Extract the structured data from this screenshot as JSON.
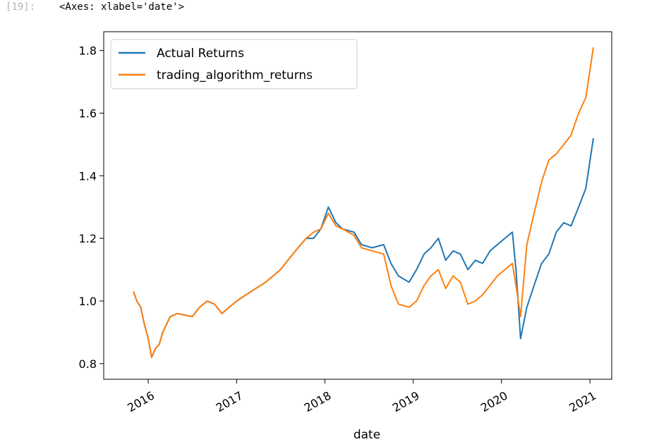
{
  "cell": {
    "prompt": "[19]:",
    "output_text": "<Axes: xlabel='date'>"
  },
  "chart_data": {
    "type": "line",
    "title": "",
    "xlabel": "date",
    "ylabel": "",
    "x_tick_labels": [
      "2016",
      "2017",
      "2018",
      "2019",
      "2020",
      "2021"
    ],
    "y_tick_labels": [
      "0.8",
      "1.0",
      "1.2",
      "1.4",
      "1.6",
      "1.8"
    ],
    "y_ticks": [
      0.8,
      1.0,
      1.2,
      1.4,
      1.6,
      1.8
    ],
    "xlim": [
      "2015-07-01",
      "2021-04-01"
    ],
    "ylim": [
      0.75,
      1.86
    ],
    "legend_position": "upper-left",
    "series": [
      {
        "name": "Actual Returns",
        "color": "#1f77b4",
        "points": [
          [
            "2015-11-01",
            1.03
          ],
          [
            "2015-11-15",
            1.0
          ],
          [
            "2015-12-01",
            0.98
          ],
          [
            "2015-12-15",
            0.93
          ],
          [
            "2016-01-01",
            0.88
          ],
          [
            "2016-01-15",
            0.82
          ],
          [
            "2016-02-01",
            0.85
          ],
          [
            "2016-02-15",
            0.86
          ],
          [
            "2016-03-01",
            0.9
          ],
          [
            "2016-04-01",
            0.95
          ],
          [
            "2016-05-01",
            0.96
          ],
          [
            "2016-06-01",
            0.955
          ],
          [
            "2016-07-01",
            0.95
          ],
          [
            "2016-08-01",
            0.98
          ],
          [
            "2016-09-01",
            1.0
          ],
          [
            "2016-10-01",
            0.99
          ],
          [
            "2016-11-01",
            0.96
          ],
          [
            "2016-12-01",
            0.98
          ],
          [
            "2017-01-01",
            1.0
          ],
          [
            "2017-03-01",
            1.03
          ],
          [
            "2017-05-01",
            1.06
          ],
          [
            "2017-07-01",
            1.1
          ],
          [
            "2017-09-01",
            1.16
          ],
          [
            "2017-10-15",
            1.2
          ],
          [
            "2017-11-15",
            1.2
          ],
          [
            "2017-12-15",
            1.23
          ],
          [
            "2018-01-15",
            1.3
          ],
          [
            "2018-02-15",
            1.25
          ],
          [
            "2018-03-15",
            1.23
          ],
          [
            "2018-05-01",
            1.22
          ],
          [
            "2018-06-01",
            1.18
          ],
          [
            "2018-07-15",
            1.17
          ],
          [
            "2018-09-01",
            1.18
          ],
          [
            "2018-10-01",
            1.12
          ],
          [
            "2018-11-01",
            1.08
          ],
          [
            "2018-12-15",
            1.06
          ],
          [
            "2019-01-15",
            1.1
          ],
          [
            "2019-02-15",
            1.15
          ],
          [
            "2019-03-15",
            1.17
          ],
          [
            "2019-04-15",
            1.2
          ],
          [
            "2019-05-15",
            1.13
          ],
          [
            "2019-06-15",
            1.16
          ],
          [
            "2019-07-15",
            1.15
          ],
          [
            "2019-08-15",
            1.1
          ],
          [
            "2019-09-15",
            1.13
          ],
          [
            "2019-10-15",
            1.12
          ],
          [
            "2019-11-15",
            1.16
          ],
          [
            "2019-12-15",
            1.18
          ],
          [
            "2020-01-15",
            1.2
          ],
          [
            "2020-02-15",
            1.22
          ],
          [
            "2020-03-01",
            1.1
          ],
          [
            "2020-03-20",
            0.88
          ],
          [
            "2020-04-15",
            0.98
          ],
          [
            "2020-05-15",
            1.05
          ],
          [
            "2020-06-15",
            1.12
          ],
          [
            "2020-07-15",
            1.15
          ],
          [
            "2020-08-15",
            1.22
          ],
          [
            "2020-09-15",
            1.25
          ],
          [
            "2020-10-15",
            1.24
          ],
          [
            "2020-11-15",
            1.3
          ],
          [
            "2020-12-15",
            1.36
          ],
          [
            "2021-01-15",
            1.52
          ]
        ]
      },
      {
        "name": "trading_algorithm_returns",
        "color": "#ff7f0e",
        "points": [
          [
            "2015-11-01",
            1.03
          ],
          [
            "2015-11-15",
            1.0
          ],
          [
            "2015-12-01",
            0.98
          ],
          [
            "2015-12-15",
            0.93
          ],
          [
            "2016-01-01",
            0.88
          ],
          [
            "2016-01-15",
            0.82
          ],
          [
            "2016-02-01",
            0.85
          ],
          [
            "2016-02-15",
            0.86
          ],
          [
            "2016-03-01",
            0.9
          ],
          [
            "2016-04-01",
            0.95
          ],
          [
            "2016-05-01",
            0.96
          ],
          [
            "2016-06-01",
            0.955
          ],
          [
            "2016-07-01",
            0.95
          ],
          [
            "2016-08-01",
            0.98
          ],
          [
            "2016-09-01",
            1.0
          ],
          [
            "2016-10-01",
            0.99
          ],
          [
            "2016-11-01",
            0.96
          ],
          [
            "2016-12-01",
            0.98
          ],
          [
            "2017-01-01",
            1.0
          ],
          [
            "2017-03-01",
            1.03
          ],
          [
            "2017-05-01",
            1.06
          ],
          [
            "2017-07-01",
            1.1
          ],
          [
            "2017-09-01",
            1.16
          ],
          [
            "2017-10-15",
            1.2
          ],
          [
            "2017-11-15",
            1.22
          ],
          [
            "2017-12-15",
            1.23
          ],
          [
            "2018-01-15",
            1.28
          ],
          [
            "2018-02-15",
            1.24
          ],
          [
            "2018-03-15",
            1.23
          ],
          [
            "2018-05-01",
            1.21
          ],
          [
            "2018-06-01",
            1.17
          ],
          [
            "2018-07-15",
            1.16
          ],
          [
            "2018-09-01",
            1.15
          ],
          [
            "2018-10-01",
            1.05
          ],
          [
            "2018-11-01",
            0.99
          ],
          [
            "2018-12-15",
            0.98
          ],
          [
            "2019-01-15",
            1.0
          ],
          [
            "2019-02-15",
            1.05
          ],
          [
            "2019-03-15",
            1.08
          ],
          [
            "2019-04-15",
            1.1
          ],
          [
            "2019-05-15",
            1.04
          ],
          [
            "2019-06-15",
            1.08
          ],
          [
            "2019-07-15",
            1.06
          ],
          [
            "2019-08-15",
            0.99
          ],
          [
            "2019-09-15",
            1.0
          ],
          [
            "2019-10-15",
            1.02
          ],
          [
            "2019-11-15",
            1.05
          ],
          [
            "2019-12-15",
            1.08
          ],
          [
            "2020-01-15",
            1.1
          ],
          [
            "2020-02-15",
            1.12
          ],
          [
            "2020-03-01",
            1.05
          ],
          [
            "2020-03-20",
            0.95
          ],
          [
            "2020-04-15",
            1.18
          ],
          [
            "2020-05-15",
            1.28
          ],
          [
            "2020-06-15",
            1.38
          ],
          [
            "2020-07-15",
            1.45
          ],
          [
            "2020-08-15",
            1.47
          ],
          [
            "2020-09-15",
            1.5
          ],
          [
            "2020-10-15",
            1.53
          ],
          [
            "2020-11-15",
            1.6
          ],
          [
            "2020-12-15",
            1.65
          ],
          [
            "2021-01-15",
            1.81
          ]
        ]
      }
    ]
  }
}
